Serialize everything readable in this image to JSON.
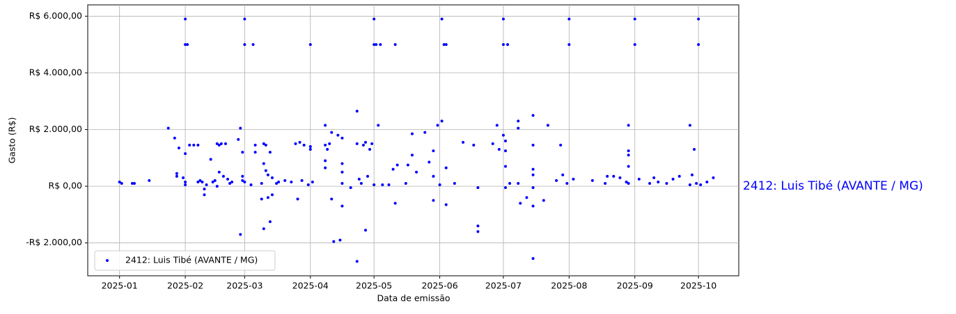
{
  "chart_data": {
    "type": "scatter",
    "xlabel": "Data de emissão",
    "ylabel": "Gasto (R$)",
    "annotation": "2412: Luis Tibé (AVANTE / MG)",
    "grid": true,
    "legend": "lower left",
    "xlim": [
      "2024-12-17",
      "2025-10-20"
    ],
    "xticks": [
      {
        "value": "2025-01-01",
        "label": "2025-01"
      },
      {
        "value": "2025-02-01",
        "label": "2025-02"
      },
      {
        "value": "2025-03-01",
        "label": "2025-03"
      },
      {
        "value": "2025-04-01",
        "label": "2025-04"
      },
      {
        "value": "2025-05-01",
        "label": "2025-05"
      },
      {
        "value": "2025-06-01",
        "label": "2025-06"
      },
      {
        "value": "2025-07-01",
        "label": "2025-07"
      },
      {
        "value": "2025-08-01",
        "label": "2025-08"
      },
      {
        "value": "2025-09-01",
        "label": "2025-09"
      },
      {
        "value": "2025-10-01",
        "label": "2025-10"
      }
    ],
    "ylim": [
      -3160,
      6400
    ],
    "yticks": [
      {
        "value": -2000,
        "label": "-R$ 2.000,00"
      },
      {
        "value": 0,
        "label": "R$ 0,00"
      },
      {
        "value": 2000,
        "label": "R$ 2.000,00"
      },
      {
        "value": 4000,
        "label": "R$ 4.000,00"
      },
      {
        "value": 6000,
        "label": "R$ 6.000,00"
      }
    ],
    "series": [
      {
        "name": "2412: Luis Tibé (AVANTE / MG)",
        "color": "#0000ff",
        "x": [
          "2025-01-01",
          "2025-01-02",
          "2025-01-07",
          "2025-01-08",
          "2025-01-15",
          "2025-01-24",
          "2025-01-27",
          "2025-01-28",
          "2025-01-28",
          "2025-01-29",
          "2025-01-31",
          "2025-02-01",
          "2025-02-01",
          "2025-02-01",
          "2025-02-01",
          "2025-02-01",
          "2025-02-02",
          "2025-02-03",
          "2025-02-05",
          "2025-02-07",
          "2025-02-07",
          "2025-02-08",
          "2025-02-09",
          "2025-02-10",
          "2025-02-10",
          "2025-02-11",
          "2025-02-13",
          "2025-02-14",
          "2025-02-15",
          "2025-02-16",
          "2025-02-16",
          "2025-02-17",
          "2025-02-17",
          "2025-02-18",
          "2025-02-19",
          "2025-02-20",
          "2025-02-21",
          "2025-02-22",
          "2025-02-23",
          "2025-02-26",
          "2025-02-27",
          "2025-02-27",
          "2025-02-28",
          "2025-02-28",
          "2025-02-28",
          "2025-03-01",
          "2025-03-01",
          "2025-03-01",
          "2025-03-04",
          "2025-03-05",
          "2025-03-06",
          "2025-03-06",
          "2025-03-09",
          "2025-03-09",
          "2025-03-10",
          "2025-03-10",
          "2025-03-10",
          "2025-03-11",
          "2025-03-11",
          "2025-03-12",
          "2025-03-12",
          "2025-03-13",
          "2025-03-13",
          "2025-03-14",
          "2025-03-14",
          "2025-03-16",
          "2025-03-17",
          "2025-03-20",
          "2025-03-23",
          "2025-03-25",
          "2025-03-26",
          "2025-03-27",
          "2025-03-28",
          "2025-03-29",
          "2025-03-31",
          "2025-04-01",
          "2025-04-01",
          "2025-04-01",
          "2025-04-02",
          "2025-04-08",
          "2025-04-08",
          "2025-04-08",
          "2025-04-08",
          "2025-04-09",
          "2025-04-10",
          "2025-04-11",
          "2025-04-11",
          "2025-04-12",
          "2025-04-14",
          "2025-04-15",
          "2025-04-16",
          "2025-04-16",
          "2025-04-16",
          "2025-04-16",
          "2025-04-16",
          "2025-04-20",
          "2025-04-23",
          "2025-04-23",
          "2025-04-23",
          "2025-04-24",
          "2025-04-25",
          "2025-04-26",
          "2025-04-27",
          "2025-04-27",
          "2025-04-28",
          "2025-04-29",
          "2025-04-30",
          "2025-05-01",
          "2025-05-01",
          "2025-05-01",
          "2025-05-02",
          "2025-05-03",
          "2025-05-04",
          "2025-05-05",
          "2025-05-08",
          "2025-05-10",
          "2025-05-11",
          "2025-05-11",
          "2025-05-12",
          "2025-05-16",
          "2025-05-17",
          "2025-05-19",
          "2025-05-19",
          "2025-05-21",
          "2025-05-25",
          "2025-05-27",
          "2025-05-29",
          "2025-05-29",
          "2025-05-29",
          "2025-05-31",
          "2025-06-01",
          "2025-06-02",
          "2025-06-02",
          "2025-06-03",
          "2025-06-04",
          "2025-06-04",
          "2025-06-04",
          "2025-06-08",
          "2025-06-12",
          "2025-06-17",
          "2025-06-19",
          "2025-06-19",
          "2025-06-19",
          "2025-06-26",
          "2025-06-28",
          "2025-06-29",
          "2025-07-01",
          "2025-07-01",
          "2025-07-01",
          "2025-07-02",
          "2025-07-02",
          "2025-07-02",
          "2025-07-02",
          "2025-07-03",
          "2025-07-04",
          "2025-07-08",
          "2025-07-08",
          "2025-07-08",
          "2025-07-09",
          "2025-07-12",
          "2025-07-15",
          "2025-07-15",
          "2025-07-15",
          "2025-07-15",
          "2025-07-15",
          "2025-07-15",
          "2025-07-15",
          "2025-07-20",
          "2025-07-22",
          "2025-07-26",
          "2025-07-28",
          "2025-07-29",
          "2025-07-31",
          "2025-08-01",
          "2025-08-01",
          "2025-08-03",
          "2025-08-12",
          "2025-08-18",
          "2025-08-19",
          "2025-08-22",
          "2025-08-25",
          "2025-08-28",
          "2025-08-29",
          "2025-08-29",
          "2025-08-29",
          "2025-08-29",
          "2025-08-29",
          "2025-09-01",
          "2025-09-01",
          "2025-09-03",
          "2025-09-08",
          "2025-09-10",
          "2025-09-12",
          "2025-09-16",
          "2025-09-19",
          "2025-09-22",
          "2025-09-27",
          "2025-09-27",
          "2025-09-28",
          "2025-09-29",
          "2025-09-30",
          "2025-10-01",
          "2025-10-01",
          "2025-10-02",
          "2025-10-05",
          "2025-10-08"
        ],
        "values": [
          150,
          100,
          100,
          100,
          200,
          2050,
          1700,
          450,
          350,
          1350,
          300,
          1150,
          5900,
          5000,
          150,
          50,
          5000,
          1450,
          1450,
          1450,
          150,
          200,
          150,
          -300,
          -100,
          50,
          950,
          150,
          200,
          0,
          1500,
          1450,
          500,
          1500,
          350,
          1500,
          250,
          100,
          150,
          1650,
          -1700,
          2050,
          1200,
          200,
          350,
          5900,
          5000,
          150,
          50,
          5000,
          1450,
          1200,
          100,
          -450,
          1500,
          -1500,
          800,
          550,
          1450,
          400,
          -400,
          1200,
          -1250,
          -300,
          300,
          100,
          150,
          200,
          150,
          1500,
          -450,
          1550,
          200,
          1450,
          50,
          5000,
          1400,
          1300,
          150,
          2150,
          1450,
          900,
          650,
          1300,
          1500,
          -450,
          1900,
          -1950,
          1800,
          -1900,
          -700,
          1700,
          800,
          500,
          100,
          -50,
          2650,
          -2650,
          1500,
          250,
          100,
          1450,
          -1550,
          1550,
          350,
          1300,
          1500,
          50,
          5900,
          5000,
          5000,
          2150,
          5000,
          50,
          50,
          600,
          5000,
          -600,
          750,
          100,
          750,
          1100,
          1850,
          500,
          1900,
          850,
          -500,
          1250,
          350,
          2150,
          50,
          2300,
          5900,
          5000,
          -650,
          650,
          5000,
          100,
          1550,
          1450,
          -1400,
          -1600,
          -50,
          1500,
          2150,
          1300,
          5900,
          5000,
          1800,
          1250,
          700,
          1600,
          -50,
          5000,
          100,
          100,
          2300,
          2050,
          -600,
          -400,
          2500,
          1450,
          -2550,
          -700,
          600,
          400,
          -50,
          -500,
          2150,
          200,
          1450,
          400,
          100,
          5900,
          5000,
          250,
          200,
          100,
          350,
          350,
          300,
          150,
          2150,
          1250,
          1100,
          700,
          100,
          5900,
          5000,
          250,
          100,
          300,
          150,
          100,
          250,
          350,
          2150,
          50,
          400,
          1300,
          100,
          5900,
          5000,
          50,
          150,
          300
        ]
      }
    ]
  }
}
